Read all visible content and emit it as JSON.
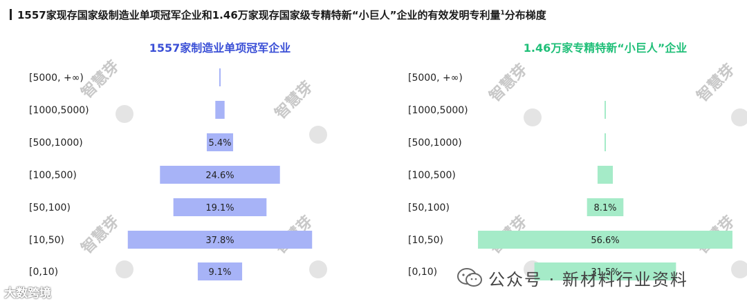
{
  "page_title": "1557家现存国家级制造业单项冠军企业和1.46万家现存国家级专精特新“小巨人”企业的有效发明专利量",
  "page_title_sup": "1",
  "page_title_suffix": "分布梯度",
  "watermark_text": "智慧芽",
  "footer_left": "大数跨境",
  "footer_right": "公众号 · 新材料行业资料",
  "colors": {
    "left": "#a7b3f7",
    "right": "#a5ebc8",
    "left_title": "#3a4fd6",
    "right_title": "#1fbf78"
  },
  "chart_data": [
    {
      "type": "bar",
      "orientation": "horizontal-centered",
      "title": "1557家制造业单项冠军企业",
      "categories": [
        "[5000, +∞)",
        "[1000,5000)",
        "[500,1000)",
        "[100,500)",
        "[50,100)",
        "[10,50)",
        "[0,10)"
      ],
      "values": [
        0.2,
        1.9,
        5.4,
        24.6,
        19.1,
        37.8,
        9.1
      ],
      "value_labels": [
        "",
        "",
        "5.4%",
        "24.6%",
        "19.1%",
        "37.8%",
        "9.1%"
      ],
      "unit": "%"
    },
    {
      "type": "bar",
      "orientation": "horizontal-centered",
      "title": "1.46万家专精特新“小巨人”企业",
      "categories": [
        "[5000, +∞)",
        "[1000,5000)",
        "[500,1000)",
        "[100,500)",
        "[50,100)",
        "[10,50)",
        "[0,10)"
      ],
      "values": [
        0.0,
        0.1,
        0.2,
        3.4,
        8.1,
        56.6,
        31.5
      ],
      "value_labels": [
        "",
        "",
        "",
        "",
        "8.1%",
        "56.6%",
        "31.5%"
      ],
      "unit": "%"
    }
  ]
}
